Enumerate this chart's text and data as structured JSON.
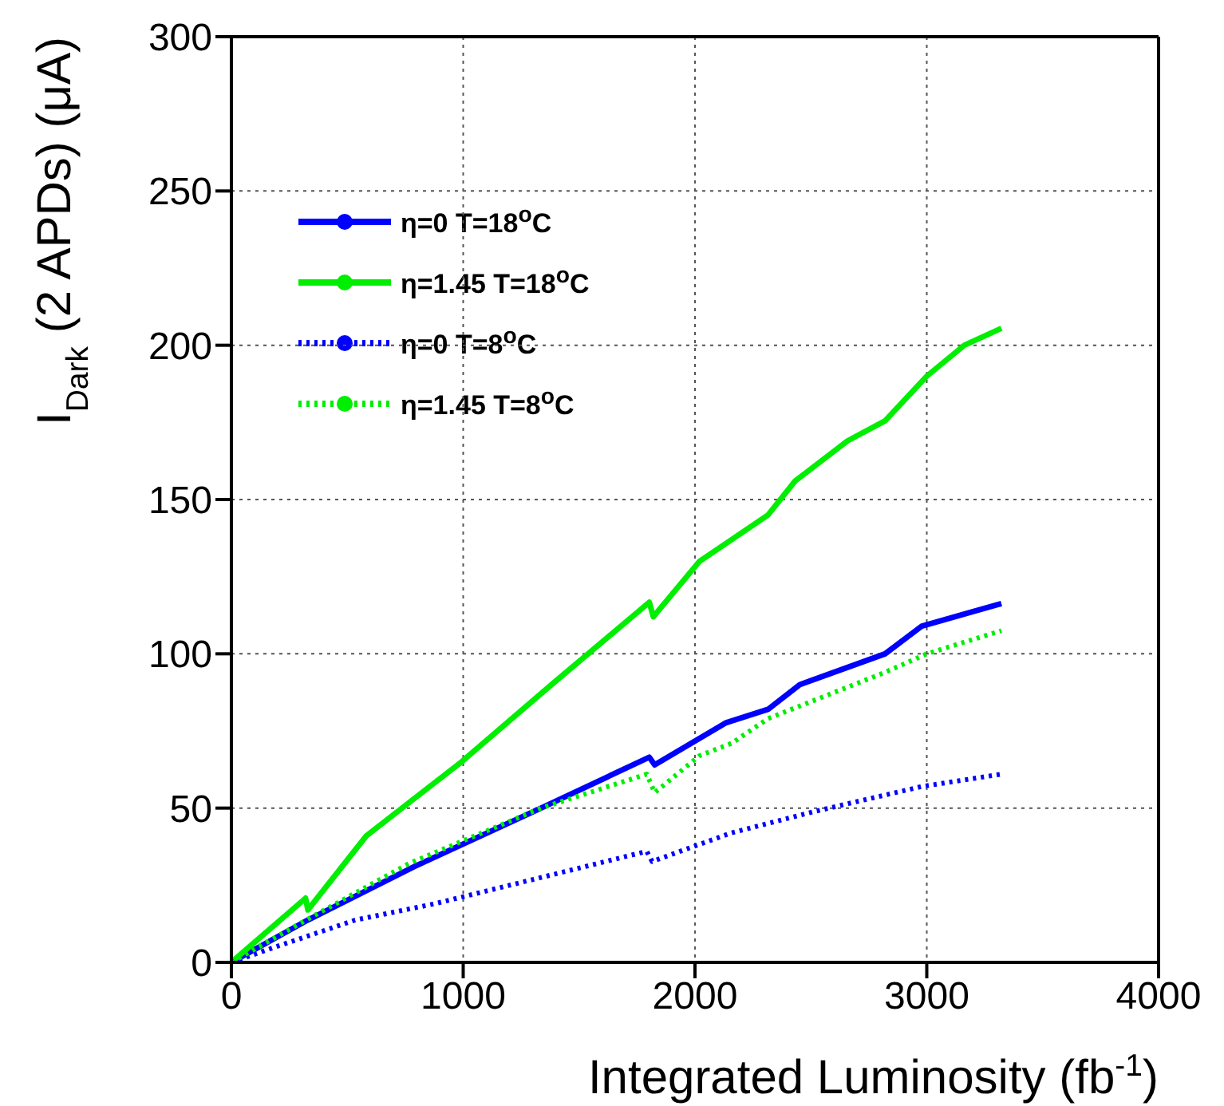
{
  "chart_data": {
    "type": "line",
    "xlabel": "Integrated Luminosity (fb$^{-1}$)",
    "ylabel": "I$_{Dark}$ (2 APDs) (μA)",
    "xlim": [
      0,
      4000
    ],
    "xticks": [
      0,
      1000,
      2000,
      3000,
      4000
    ],
    "ylim": [
      0,
      300
    ],
    "yticks": [
      0,
      50,
      100,
      150,
      200,
      250,
      300
    ],
    "grid": true,
    "legend": "top left",
    "series": [
      {
        "name": "η=0 T=18$^{o}$C",
        "color": "#0000ff",
        "line_style": "solid",
        "x": [
          0,
          329,
          788,
          1336,
          1803,
          1826,
          2135,
          2315,
          2452,
          2820,
          2979,
          3322
        ],
        "values": [
          0,
          13.7,
          31,
          50,
          66.5,
          64,
          77.7,
          82,
          90,
          100,
          109,
          116.3
        ]
      },
      {
        "name": "η=1.45 T=18$^{o}$C",
        "color": "#00ee00",
        "line_style": "solid",
        "x": [
          0,
          320,
          330,
          582,
          993,
          1381,
          1803,
          1820,
          2020,
          2315,
          2432,
          2658,
          2820,
          3000,
          3162,
          3322
        ],
        "values": [
          0,
          20.8,
          17,
          41,
          65,
          90,
          116.7,
          112,
          130,
          145,
          156,
          169,
          175.5,
          190,
          200,
          205.5
        ]
      },
      {
        "name": "η=0 T=8$^{o}$C",
        "color": "#0000ff",
        "line_style": "dotted",
        "x": [
          0,
          190,
          534,
          877,
          1336,
          1792,
          1815,
          2158,
          2521,
          2979,
          3322
        ],
        "values": [
          0,
          5,
          13.7,
          19,
          27.5,
          36,
          32.7,
          42,
          49,
          57,
          61
        ]
      },
      {
        "name": "η=1.45 T=8$^{o}$C",
        "color": "#00ee00",
        "line_style": "dotted",
        "x": [
          0,
          329,
          765,
          1336,
          1792,
          1826,
          2020,
          2158,
          2315,
          2820,
          3000,
          3322
        ],
        "values": [
          0,
          14,
          32,
          50,
          61,
          55,
          67,
          71,
          79,
          94,
          100,
          107.5
        ]
      }
    ]
  }
}
